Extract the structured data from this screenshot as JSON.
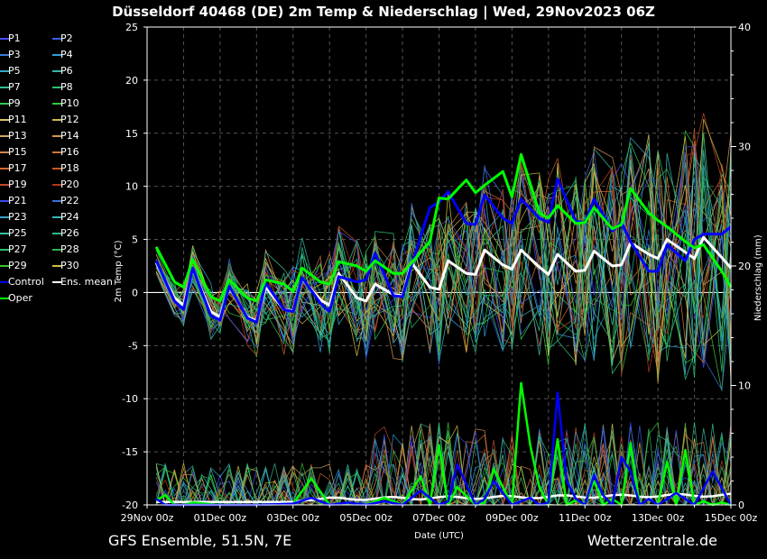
{
  "title": "Düsseldorf 40468 (DE)  2m Temp & Niederschlag | Wed, 29Nov2023 06Z",
  "footer": {
    "left": "GFS Ensemble, 51.5N, 7E",
    "right": "Wetterzentrale.de"
  },
  "legend": [
    {
      "label": "P1",
      "color": "#4a4aff"
    },
    {
      "label": "P2",
      "color": "#3a5fe0"
    },
    {
      "label": "P3",
      "color": "#3a7ad8"
    },
    {
      "label": "P4",
      "color": "#2f9fd8"
    },
    {
      "label": "P5",
      "color": "#33a8c8"
    },
    {
      "label": "P6",
      "color": "#33b8a8"
    },
    {
      "label": "P7",
      "color": "#33c088"
    },
    {
      "label": "P8",
      "color": "#2fc070"
    },
    {
      "label": "P9",
      "color": "#30c850"
    },
    {
      "label": "P10",
      "color": "#33c83a"
    },
    {
      "label": "P11",
      "color": "#d8c860"
    },
    {
      "label": "P12",
      "color": "#d0b850"
    },
    {
      "label": "P13",
      "color": "#d0a860"
    },
    {
      "label": "P14",
      "color": "#d09850"
    },
    {
      "label": "P15",
      "color": "#d08850"
    },
    {
      "label": "P16",
      "color": "#d07838"
    },
    {
      "label": "P17",
      "color": "#d06830"
    },
    {
      "label": "P18",
      "color": "#c85828"
    },
    {
      "label": "P19",
      "color": "#c04828"
    },
    {
      "label": "P20",
      "color": "#b03820"
    },
    {
      "label": "P21",
      "color": "#3a4ae8"
    },
    {
      "label": "P22",
      "color": "#3a70d8"
    },
    {
      "label": "P23",
      "color": "#38a0c8"
    },
    {
      "label": "P24",
      "color": "#38b8b8"
    },
    {
      "label": "P25",
      "color": "#38c0a0"
    },
    {
      "label": "P26",
      "color": "#30b888"
    },
    {
      "label": "P27",
      "color": "#30c068"
    },
    {
      "label": "P28",
      "color": "#30b050"
    },
    {
      "label": "P29",
      "color": "#40c030"
    },
    {
      "label": "P30",
      "color": "#d0c040"
    },
    {
      "label": "Control",
      "color": "#0000ff"
    },
    {
      "label": "Ens. mean",
      "color": "#ffffff"
    },
    {
      "label": "Oper",
      "color": "#00ff00"
    }
  ],
  "chart_data": {
    "type": "line",
    "title": "Düsseldorf 40468 (DE)  2m Temp & Niederschlag | Wed, 29Nov2023 06Z",
    "xlabel": "Date (UTC)",
    "ylabel_left": "2m Temp (°C)",
    "ylabel_right": "Niederschlag (mm)",
    "ylim_left": [
      -20,
      25
    ],
    "ylim_right": [
      0,
      40
    ],
    "xlim": [
      0,
      16
    ],
    "x_unit": "days after 29Nov 00z",
    "grid": true,
    "zero_line": 0,
    "yticks_left": [
      "25",
      "20",
      "15",
      "10",
      "5",
      "0",
      "-5",
      "-10",
      "-15",
      "-20"
    ],
    "yticks_right": [
      "40",
      "30",
      "20",
      "10",
      "0"
    ],
    "x_ticks": [
      "29Nov 00z",
      "01Dec 00z",
      "03Dec 00z",
      "05Dec 00z",
      "07Dec 00z",
      "09Dec 00z",
      "11Dec 00z",
      "13Dec 00z",
      "15Dec 00z"
    ],
    "series": [
      {
        "name": "Ens. mean",
        "color": "#ffffff",
        "x": [
          0.25,
          0.75,
          1,
          1.25,
          1.75,
          2,
          2.25,
          2.75,
          3,
          3.25,
          3.75,
          4,
          4.25,
          4.75,
          5,
          5.25,
          5.75,
          6,
          6.25,
          6.75,
          7,
          7.25,
          7.75,
          8,
          8.25,
          8.75,
          9,
          9.25,
          9.75,
          10,
          10.25,
          10.75,
          11,
          11.25,
          11.75,
          12,
          12.25,
          12.75,
          13,
          13.25,
          13.75,
          14,
          14.25,
          14.75,
          15,
          15.25,
          15.75,
          16
        ],
        "values": [
          2.8,
          -0.5,
          -1.2,
          2.2,
          -1.8,
          -2.3,
          0.5,
          -2.3,
          -2.7,
          0.5,
          -1.6,
          -1.7,
          1.3,
          -0.7,
          -1.2,
          1.8,
          -0.5,
          -0.8,
          0.8,
          -0.2,
          -0.3,
          2.8,
          0.5,
          0.3,
          3.0,
          1.8,
          1.7,
          4.0,
          2.6,
          2.2,
          4.0,
          2.4,
          1.7,
          3.6,
          2.0,
          2.1,
          3.9,
          2.5,
          2.6,
          4.7,
          3.6,
          3.2,
          5.0,
          3.8,
          3.2,
          5.2,
          3.3,
          2.3
        ]
      },
      {
        "name": "Control",
        "color": "#0000ff",
        "x": [
          0.25,
          0.75,
          1,
          1.25,
          1.75,
          2,
          2.25,
          2.75,
          3,
          3.25,
          3.75,
          4,
          4.25,
          4.75,
          5,
          5.25,
          5.75,
          6,
          6.25,
          6.75,
          7,
          7.25,
          7.75,
          8,
          8.25,
          8.75,
          9,
          9.25,
          9.75,
          10,
          10.25,
          10.75,
          11,
          11.25,
          11.75,
          12,
          12.25,
          12.75,
          13,
          13.25,
          13.75,
          14,
          14.25,
          14.75,
          15,
          15.25,
          15.75,
          16
        ],
        "values": [
          3.0,
          -0.8,
          -1.6,
          2.3,
          -2.2,
          -2.6,
          0.6,
          -2.4,
          -2.8,
          0.9,
          -1.6,
          -1.8,
          1.4,
          -1.0,
          -1.8,
          1.5,
          1.0,
          1.2,
          3.7,
          -0.3,
          -0.4,
          2.6,
          8.0,
          8.5,
          9.5,
          6.5,
          6.4,
          9.2,
          7.0,
          6.5,
          8.8,
          7.0,
          6.6,
          10.7,
          6.7,
          6.6,
          8.8,
          5.8,
          6.6,
          4.8,
          2.0,
          2.0,
          4.5,
          3.0,
          5.0,
          5.5,
          5.5,
          6.2
        ]
      },
      {
        "name": "Oper",
        "color": "#00ff00",
        "x": [
          0.25,
          0.75,
          1,
          1.25,
          1.75,
          2,
          2.25,
          2.75,
          3,
          3.25,
          3.75,
          4,
          4.25,
          4.75,
          5,
          5.25,
          5.75,
          6,
          6.25,
          6.75,
          7,
          7.25,
          7.75,
          8,
          8.25,
          8.75,
          9,
          9.25,
          9.75,
          10,
          10.25,
          10.75,
          11,
          11.25,
          11.75,
          12,
          12.25,
          12.75,
          13,
          13.25,
          13.75,
          14,
          14.25,
          14.75,
          15,
          15.25,
          15.75,
          16
        ],
        "values": [
          4.3,
          1.0,
          0.5,
          3.1,
          -0.4,
          -0.8,
          1.2,
          -0.5,
          -0.8,
          1.2,
          0.8,
          0.1,
          2.3,
          1.0,
          0.8,
          2.9,
          2.5,
          2.0,
          3.0,
          1.8,
          1.8,
          2.8,
          4.8,
          8.9,
          8.8,
          10.6,
          9.4,
          10.1,
          11.4,
          9.0,
          13.0,
          7.5,
          7.0,
          8.2,
          6.5,
          6.6,
          8.0,
          6.0,
          6.4,
          9.8,
          7.5,
          6.8,
          6.2,
          4.8,
          4.2,
          4.5,
          2.0,
          0.5
        ]
      },
      {
        "name": "Oper precip",
        "color": "#00ff00",
        "axis": "right",
        "x": [
          0.25,
          0.5,
          0.75,
          1,
          1.25,
          2,
          3,
          4,
          4.5,
          5,
          5.5,
          6,
          6.5,
          7,
          7.5,
          7.75,
          8,
          8.25,
          8.5,
          9,
          9.25,
          9.5,
          10,
          10.25,
          10.5,
          10.75,
          11,
          11.25,
          11.5,
          11.75,
          12,
          12.25,
          12.5,
          12.75,
          13,
          13.25,
          13.5,
          13.75,
          14,
          14.25,
          14.5,
          14.75,
          15,
          15.25,
          15.5,
          15.75,
          16
        ],
        "values": [
          0.4,
          0.8,
          0,
          0,
          0.2,
          0,
          0,
          0.1,
          2.2,
          0,
          0.2,
          0,
          0.6,
          0,
          2.4,
          0,
          5.0,
          0,
          1.5,
          0,
          0.2,
          3.0,
          0,
          10.2,
          5.0,
          1.5,
          0,
          5.5,
          0,
          0.4,
          0,
          2.0,
          0,
          0.5,
          0,
          5.2,
          0,
          0.5,
          0,
          3.6,
          0,
          4.6,
          0,
          0.3,
          0,
          0.2,
          0
        ]
      },
      {
        "name": "Control precip",
        "color": "#0000ff",
        "axis": "right",
        "x": [
          0.25,
          0.5,
          1,
          2,
          3,
          4,
          4.5,
          5,
          5.5,
          6,
          6.5,
          7,
          7.5,
          8,
          8.25,
          8.5,
          9,
          9.25,
          9.5,
          10,
          10.25,
          10.5,
          10.75,
          11,
          11.25,
          11.5,
          11.75,
          12,
          12.25,
          12.5,
          12.75,
          13,
          13.25,
          13.5,
          13.75,
          14,
          14.5,
          15,
          15.5,
          16
        ],
        "values": [
          0.5,
          0,
          0,
          0,
          0,
          0.1,
          0.6,
          0,
          0.2,
          0,
          0.3,
          0,
          1.2,
          0,
          0.3,
          3.4,
          0,
          0.5,
          2.0,
          0,
          0.3,
          0.6,
          0,
          0.2,
          9.4,
          2.0,
          0.5,
          0,
          2.5,
          0.8,
          0,
          4.0,
          2.8,
          0,
          0.5,
          0,
          1.0,
          0,
          2.8,
          0
        ]
      }
    ]
  }
}
